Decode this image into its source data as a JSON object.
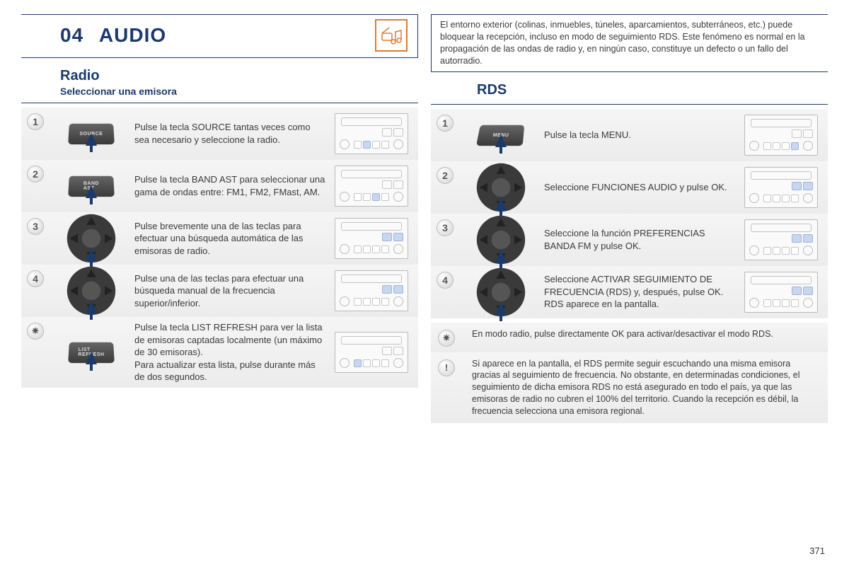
{
  "page_number": "371",
  "colors": {
    "accent": "#1b3a6b",
    "orange": "#e07b2e",
    "step_bg": "#ececec",
    "highlight": "#c9d6ef"
  },
  "header": {
    "chapter_num": "04",
    "title": "AUDIO",
    "icon": "music-radio-icon"
  },
  "left": {
    "subtitle": "Radio",
    "subsubtitle": "Seleccionar una emisora",
    "steps": [
      {
        "num": "1",
        "control": "source",
        "control_label": "SOURCE",
        "text": "Pulse la tecla SOURCE tantas veces como sea necesario y seleccione la radio.",
        "highlight_btn": 1
      },
      {
        "num": "2",
        "control": "band",
        "control_label": "BAND\nAST",
        "text": "Pulse la tecla BAND AST para seleccionar una gama de ondas entre: FM1, FM2, FMast, AM.",
        "highlight_btn": 2
      },
      {
        "num": "3",
        "control": "wheel",
        "text": "Pulse brevemente una de las teclas para efectuar una búsqueda automática de las emisoras de radio.",
        "highlight_side": true
      },
      {
        "num": "4",
        "control": "wheel",
        "text": "Pulse una de las teclas para efectuar una búsqueda manual de la frecuencia superior/inferior.",
        "highlight_side": true
      },
      {
        "num": "✷",
        "control": "list",
        "control_label": "LIST\nREFRESH",
        "text": "Pulse la tecla LIST REFRESH para ver la lista de emisoras captadas localmente (un máximo de 30 emisoras).\nPara actualizar esta lista, pulse durante más de dos segundos.",
        "highlight_btn": 0
      }
    ]
  },
  "right": {
    "info_top": "El entorno exterior (colinas, inmuebles, túneles, aparcamientos, subterráneos, etc.) puede bloquear la recepción, incluso en modo de seguimiento RDS. Este fenómeno es normal en la propagación de las ondas de radio y, en ningún caso, constituye un defecto o un fallo del autorradio.",
    "subtitle": "RDS",
    "steps": [
      {
        "num": "1",
        "control": "menu",
        "control_label": "MENU",
        "text": "Pulse la tecla MENU.",
        "highlight_btn": 3
      },
      {
        "num": "2",
        "control": "wheel",
        "text": "Seleccione FUNCIONES AUDIO y pulse OK.",
        "highlight_side": true
      },
      {
        "num": "3",
        "control": "wheel",
        "text": "Seleccione la función PREFERENCIAS BANDA FM y pulse OK.",
        "highlight_side": true
      },
      {
        "num": "4",
        "control": "wheel",
        "text": "Seleccione ACTIVAR SEGUIMIENTO DE FRECUENCIA (RDS) y, después, pulse OK. RDS aparece en la pantalla.",
        "highlight_side": true
      }
    ],
    "tips": [
      {
        "icon": "✷",
        "text": "En modo radio, pulse directamente OK para activar/desactivar el modo RDS."
      },
      {
        "icon": "!",
        "text": "Si aparece en la pantalla, el RDS permite seguir escuchando una misma emisora gracias al seguimiento de frecuencia. No obstante, en determinadas condiciones, el seguimiento de dicha emisora RDS no está asegurado en todo el país, ya que las emisoras de radio no cubren el 100% del territorio. Cuando la recepción es débil, la frecuencia selecciona una emisora regional."
      }
    ]
  }
}
